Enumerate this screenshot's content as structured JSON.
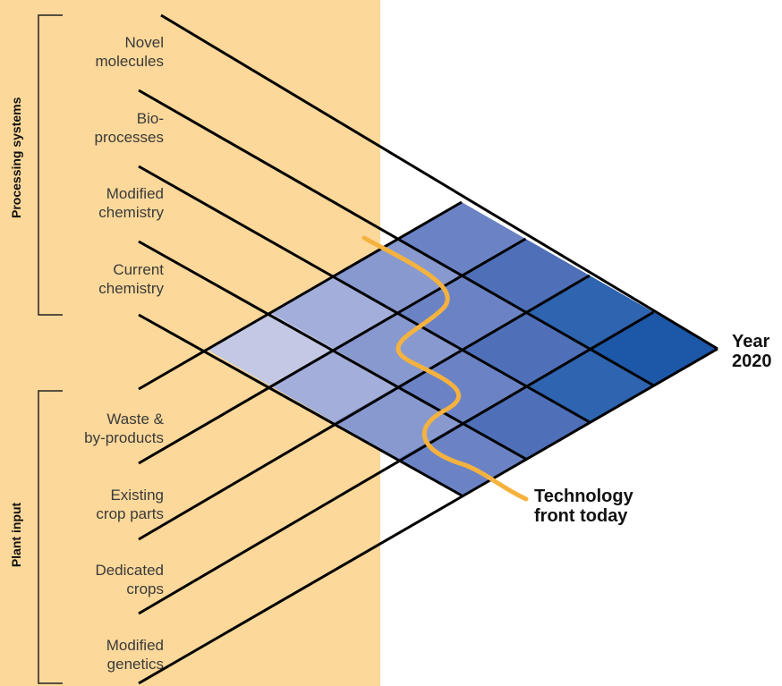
{
  "colors": {
    "panel": "#fcd89a",
    "lines": "#000000",
    "front": "#f6b23e",
    "cells": [
      "#c3c9e4",
      "#a3afda",
      "#8899cf",
      "#6b83c4",
      "#4f70b8",
      "#2f64b0",
      "#1d57a7"
    ]
  },
  "groups": {
    "processing": {
      "title": "Processing systems",
      "labels": [
        "Novel\nmolecules",
        "Bio-\nprocesses",
        "Modified\nchemistry",
        "Current\nchemistry"
      ]
    },
    "plant": {
      "title": "Plant input",
      "labels": [
        "Waste &\nby-products",
        "Existing\ncrop parts",
        "Dedicated\ncrops",
        "Modified\ngenetics"
      ]
    }
  },
  "year_label": "Year\n2020",
  "front_label": "Technology\nfront today"
}
